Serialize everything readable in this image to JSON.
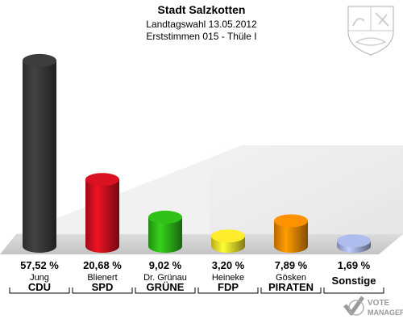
{
  "header": {
    "title": "Stadt Salzkotten",
    "subtitle": "Landtagswahl 13.05.2012",
    "district": "Erststimmen 015 - Thüle I"
  },
  "chart_data": {
    "type": "bar",
    "title": "Stadt Salzkotten",
    "subtitle": "Landtagswahl 13.05.2012 · Erststimmen 015 - Thüle I",
    "categories": [
      "CDU",
      "SPD",
      "GRÜNE",
      "FDP",
      "PIRATEN",
      "Sonstige"
    ],
    "candidates": [
      "Jung",
      "Blienert",
      "Dr. Grünau",
      "Heineke",
      "Gösken",
      ""
    ],
    "values": [
      57.52,
      20.68,
      9.02,
      3.2,
      7.89,
      1.69
    ],
    "value_labels": [
      "57,52 %",
      "20,68 %",
      "9,02 %",
      "3,20 %",
      "7,89 %",
      "1,69 %"
    ],
    "colors": [
      "#3a3a3a",
      "#d0101e",
      "#2eb818",
      "#f2e22a",
      "#f28a00",
      "#a6b4e2"
    ],
    "unit": "%",
    "ylim": [
      0,
      60
    ]
  },
  "icons": {
    "crest": "nrw-coat-of-arms-icon",
    "watermark": "vote-manager-logo-icon"
  },
  "watermark": {
    "line1": "VOTE",
    "line2": "MANAGER"
  }
}
